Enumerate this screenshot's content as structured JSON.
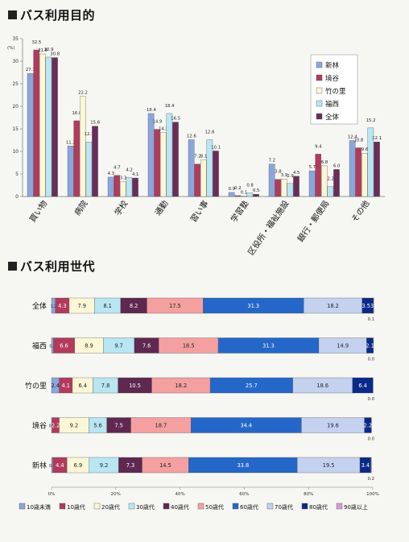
{
  "charts": {
    "purpose_title": "バス利用目的",
    "generation_title": "バス利用世代"
  },
  "chart_data": [
    {
      "type": "bar",
      "title": "バス利用目的",
      "ylabel": "%",
      "y_unit_label": "(%)",
      "ylim": [
        0,
        35
      ],
      "yticks": [
        0,
        5,
        10,
        15,
        20,
        25,
        30,
        35
      ],
      "grid": false,
      "legend_position": "top-right",
      "categories": [
        "買い物",
        "病院",
        "学校",
        "通勤",
        "習い事",
        "学習塾",
        "区役所・福祉施設",
        "銀行・郵便局",
        "その他"
      ],
      "series": [
        {
          "name": "新林",
          "color": "#8aa6dc",
          "values": [
            27.3,
            11.2,
            4.3,
            18.4,
            12.6,
            0.9,
            7.2,
            5.7,
            12.4
          ]
        },
        {
          "name": "境谷",
          "color": "#b23a5c",
          "values": [
            32.5,
            16.8,
            4.7,
            14.9,
            7.2,
            0.2,
            3.8,
            9.4,
            10.8
          ]
        },
        {
          "name": "竹の里",
          "color": "#fbf7d6",
          "values": [
            31.6,
            22.2,
            3.3,
            14.2,
            8.1,
            0.1,
            3.9,
            6.8,
            9.6
          ]
        },
        {
          "name": "福西",
          "color": "#b8e6f2",
          "values": [
            30.9,
            12.1,
            4.2,
            18.4,
            12.6,
            0.8,
            2.9,
            2.2,
            15.2
          ]
        },
        {
          "name": "全体",
          "color": "#6a2c58",
          "values": [
            30.8,
            15.6,
            4.1,
            16.5,
            10.1,
            0.5,
            4.5,
            6.0,
            12.1
          ]
        }
      ],
      "data_labels": [
        [
          "27.3",
          "11.2",
          "4.3",
          "18.4",
          "12.6",
          "0.9",
          "7.2",
          "5.7",
          "12.4"
        ],
        [
          "32.5",
          "16.8",
          "4.7",
          "14.9",
          "7.2",
          "0.2",
          "3.8",
          "9.4",
          "10.8"
        ],
        [
          "31.6",
          "22.2",
          "3.3",
          "14.2",
          "8.1",
          "0.1",
          "3.9",
          "6.8",
          "9.6"
        ],
        [
          "30.9",
          "12.1",
          "4.2",
          "18.4",
          "12.6",
          "0.8",
          "2.9",
          "2.2",
          "15.2"
        ],
        [
          "30.8",
          "15.6",
          "4.1",
          "16.5",
          "10.1",
          "0.5",
          "4.5",
          "6.0",
          "12.1"
        ]
      ]
    },
    {
      "type": "bar",
      "orientation": "horizontal",
      "stacked": "percent",
      "title": "バス利用世代",
      "xlim": [
        0,
        100
      ],
      "xticks": [
        "0%",
        "20%",
        "40%",
        "60%",
        "80%",
        "100%"
      ],
      "grid": false,
      "legend_position": "bottom",
      "rows": [
        "全体",
        "福西",
        "竹の里",
        "境谷",
        "新林"
      ],
      "series": [
        {
          "name": "10歳未満",
          "color": "#8aa6dc",
          "values": [
            1.2,
            0.6,
            2.4,
            0.2,
            0.4
          ]
        },
        {
          "name": "10歳代",
          "color": "#b23a5c",
          "values": [
            4.3,
            6.6,
            4.1,
            2.2,
            4.4
          ]
        },
        {
          "name": "20歳代",
          "color": "#fbf7d6",
          "values": [
            7.9,
            8.9,
            6.4,
            9.2,
            6.9
          ]
        },
        {
          "name": "30歳代",
          "color": "#b8e6f2",
          "values": [
            8.1,
            9.7,
            7.8,
            5.6,
            9.2
          ]
        },
        {
          "name": "40歳代",
          "color": "#5e2850",
          "values": [
            8.2,
            7.6,
            10.5,
            7.5,
            7.3
          ]
        },
        {
          "name": "50歳代",
          "color": "#f4a0a0",
          "values": [
            17.5,
            18.5,
            18.2,
            18.7,
            14.5
          ]
        },
        {
          "name": "60歳代",
          "color": "#2467c8",
          "values": [
            31.3,
            31.3,
            25.7,
            34.4,
            33.8
          ]
        },
        {
          "name": "70歳代",
          "color": "#c4d2f0",
          "values": [
            18.2,
            14.9,
            18.6,
            19.6,
            19.5
          ]
        },
        {
          "name": "80歳代",
          "color": "#0a2a8a",
          "values": [
            3.5,
            2.1,
            6.4,
            2.2,
            3.4
          ]
        },
        {
          "name": "90歳以上",
          "color": "#d59ad3",
          "values": [
            0.1,
            0.0,
            0.0,
            0.0,
            0.2
          ]
        }
      ],
      "segment_labels": [
        [
          "1.2",
          "4.3",
          "7.9",
          "8.1",
          "8.2",
          "17.5",
          "31.3",
          "18.2",
          "3.53",
          ""
        ],
        [
          "0.6",
          "6.6",
          "8.9",
          "9.7",
          "7.6",
          "18.5",
          "31.3",
          "14.9",
          "2.1",
          ""
        ],
        [
          "2.4",
          "4.1",
          "6.4",
          "7.8",
          "10.5",
          "18.2",
          "25.7",
          "18.6",
          "6.4",
          ""
        ],
        [
          "0.2",
          "2.2",
          "9.2",
          "5.6",
          "7.5",
          "18.7",
          "34.4",
          "19.6",
          "2.2",
          ""
        ],
        [
          "0.4",
          "4.4",
          "6.9",
          "9.2",
          "7.3",
          "14.5",
          "33.8",
          "19.5",
          "3.4",
          ""
        ]
      ],
      "end_labels": [
        "0.1",
        "0.0",
        "0.0",
        "0.0",
        "0.2"
      ]
    }
  ]
}
